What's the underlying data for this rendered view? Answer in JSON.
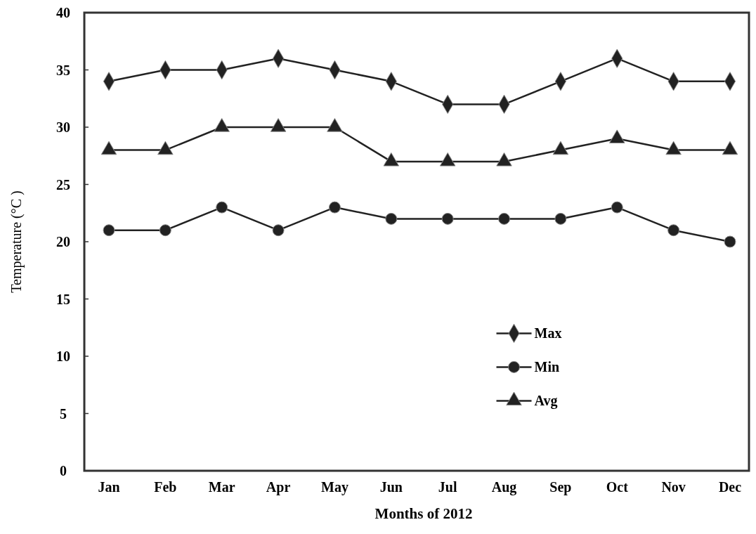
{
  "chart_data": {
    "type": "line",
    "xlabel": "Months of 2012",
    "ylabel": "Temperature (°C )",
    "categories": [
      "Jan",
      "Feb",
      "Mar",
      "Apr",
      "May",
      "Jun",
      "Jul",
      "Aug",
      "Sep",
      "Oct",
      "Nov",
      "Dec"
    ],
    "series": [
      {
        "name": "Max",
        "color": "#222222",
        "marker": "diamond",
        "values": [
          34,
          35,
          35,
          36,
          35,
          34,
          32,
          32,
          34,
          36,
          34,
          34
        ]
      },
      {
        "name": "Min",
        "color": "#222222",
        "marker": "circle",
        "values": [
          21,
          21,
          23,
          21,
          23,
          22,
          22,
          22,
          22,
          23,
          21,
          20
        ]
      },
      {
        "name": "Avg",
        "color": "#222222",
        "marker": "triangle",
        "values": [
          28,
          28,
          30,
          30,
          30,
          27,
          27,
          27,
          28,
          29,
          28,
          28
        ]
      }
    ],
    "ylim": [
      0,
      40
    ],
    "yticks": [
      0,
      5,
      10,
      15,
      20,
      25,
      30,
      35,
      40
    ],
    "grid": false,
    "legend": "bottom right",
    "line_style": "solid"
  }
}
